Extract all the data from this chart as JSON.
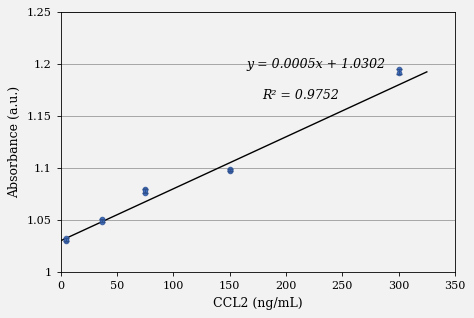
{
  "title": "",
  "xlabel": "CCL2 (ng/mL)",
  "ylabel": "Absorbance (a.u.)",
  "xlim": [
    0,
    350
  ],
  "ylim": [
    1.0,
    1.25
  ],
  "xticks": [
    0,
    50,
    100,
    150,
    200,
    250,
    300,
    350
  ],
  "yticks": [
    1.0,
    1.05,
    1.1,
    1.15,
    1.2,
    1.25
  ],
  "ytick_labels": [
    "1",
    "1.05",
    "1.1",
    "1.15",
    "1.2",
    "1.25"
  ],
  "data_x": [
    5,
    5,
    5,
    37,
    37,
    37,
    75,
    75,
    75,
    150,
    150,
    150,
    300,
    300
  ],
  "data_y": [
    1.03,
    1.033,
    1.031,
    1.05,
    1.051,
    1.048,
    1.076,
    1.08,
    1.079,
    1.097,
    1.099,
    1.098,
    1.192,
    1.195
  ],
  "data_mean_x": [
    5,
    37,
    75,
    150,
    300
  ],
  "data_mean_y": [
    1.031,
    1.05,
    1.078,
    1.098,
    1.193
  ],
  "data_err": [
    0.0015,
    0.0015,
    0.002,
    0.001,
    0.002
  ],
  "fit_slope": 0.0005,
  "fit_intercept": 1.0302,
  "r2": 0.9752,
  "equation_text": "y = 0.0005x + 1.0302",
  "r2_text": "R² = 0.9752",
  "marker_color": "#4472C4",
  "marker_edge_color": "#2F528F",
  "line_color": "#000000",
  "bg_color": "#f2f2f2",
  "grid_color": "#888888",
  "font_size_labels": 9,
  "font_size_ticks": 8,
  "font_size_eq": 9
}
